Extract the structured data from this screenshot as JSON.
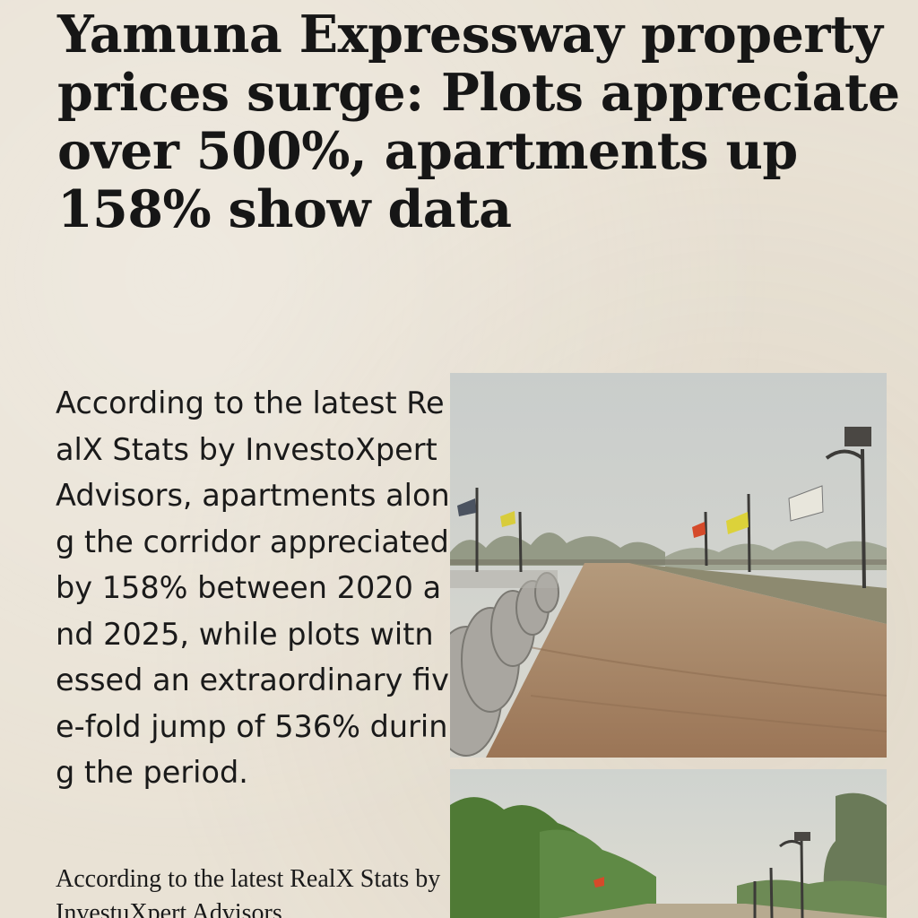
{
  "article": {
    "headline": "Yamuna Expressway property prices surge: Plots appreciate over 500%, apartments up 158% show data",
    "lede": "According to the latest RealX Stats by InvestoXpert Advisors, apartments along the corridor appreciated by 158% between 2020 and 2025, while plots witnessed an extraordinary five-fold jump of 536% during the period.",
    "second_paragraph": "According to the latest RealX Stats by InvestuXpert Advisors"
  },
  "images": {
    "photo_1": {
      "subject": "dirt road with concrete pipes, street lamps and flags"
    },
    "photo_2": {
      "subject": "road lined with trees and street lamps"
    }
  }
}
